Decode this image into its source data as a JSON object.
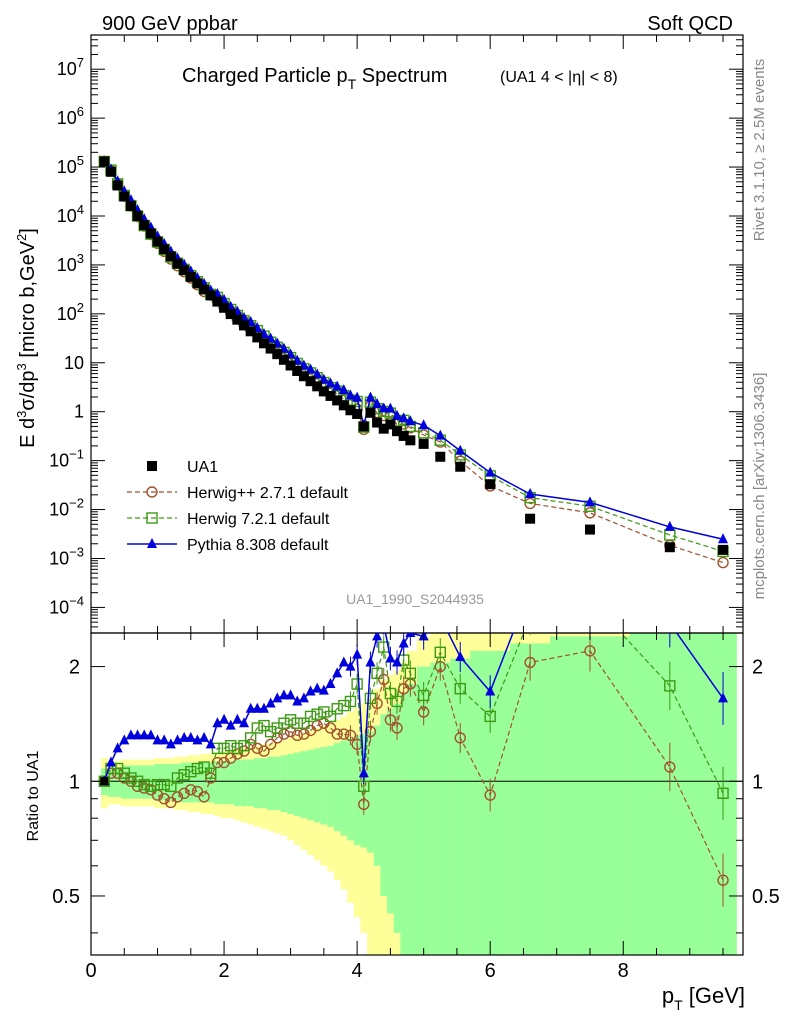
{
  "header": {
    "left": "900 GeV ppbar",
    "right": "Soft QCD"
  },
  "side_labels": {
    "rivet": "Rivet 3.1.10, ≥ 2.5M events",
    "mcplots": "mcplots.cern.ch [arXiv:1306.3436]"
  },
  "chart_data": {
    "type": "scatter",
    "title": "Charged Particle pT Spectrum",
    "title_main": "Charged Particle p",
    "title_sub": "T",
    "title_tail": " Spectrum",
    "subtitle": "(UA1   4 < |η| < 8)",
    "watermark": "UA1_1990_S2044935",
    "xlabel": "p",
    "xlabel_sub": "T",
    "xlabel_unit": " [GeV]",
    "ylabel": "E d³σ/dp³ [micro b,GeV²]",
    "ylabel_parts": {
      "a": "E d",
      "b": "3",
      "c": "σ/dp",
      "d": "3",
      "e": " [micro b,GeV",
      "f": "2",
      "g": "]"
    },
    "ratio_ylabel": "Ratio to UA1",
    "xlim": [
      0,
      9.8
    ],
    "ylim": [
      3e-05,
      50000000
    ],
    "ratio_ylim": [
      0.35,
      2.45
    ],
    "x_ticks": [
      "0",
      "2",
      "4",
      "6",
      "8"
    ],
    "y_ticks": [
      {
        "v": 10000000,
        "base": "10",
        "exp": "7"
      },
      {
        "v": 1000000,
        "base": "10",
        "exp": "6"
      },
      {
        "v": 100000,
        "base": "10",
        "exp": "5"
      },
      {
        "v": 10000,
        "base": "10",
        "exp": "4"
      },
      {
        "v": 1000,
        "base": "10",
        "exp": "3"
      },
      {
        "v": 100,
        "base": "10",
        "exp": "2"
      },
      {
        "v": 10,
        "base": "10",
        "exp": ""
      },
      {
        "v": 1,
        "base": "1",
        "exp": ""
      },
      {
        "v": 0.1,
        "base": "10",
        "exp": "−1"
      },
      {
        "v": 0.01,
        "base": "10",
        "exp": "−2"
      },
      {
        "v": 0.001,
        "base": "10",
        "exp": "−3"
      },
      {
        "v": 0.0001,
        "base": "10",
        "exp": "−4"
      }
    ],
    "ratio_ticks": [
      "2",
      "1",
      "0.5"
    ],
    "colors": {
      "data": "#000000",
      "herwigpp": "#a0522d",
      "herwig7": "#3c9a13",
      "pythia": "#0000dd",
      "band_outer": "#ffff99",
      "band_inner": "#99ff99"
    },
    "legend": [
      {
        "key": "data",
        "label": "UA1"
      },
      {
        "key": "herwigpp",
        "label": "Herwig++ 2.7.1 default"
      },
      {
        "key": "herwig7",
        "label": "Herwig 7.2.1 default"
      },
      {
        "key": "pythia",
        "label": "Pythia 8.308 default"
      }
    ],
    "x": [
      0.2,
      0.3,
      0.4,
      0.5,
      0.6,
      0.7,
      0.8,
      0.9,
      1.0,
      1.1,
      1.2,
      1.3,
      1.4,
      1.5,
      1.6,
      1.7,
      1.8,
      1.9,
      2.0,
      2.1,
      2.2,
      2.3,
      2.4,
      2.5,
      2.6,
      2.7,
      2.8,
      2.9,
      3.0,
      3.1,
      3.2,
      3.3,
      3.4,
      3.5,
      3.6,
      3.7,
      3.8,
      3.9,
      4.0,
      4.1,
      4.2,
      4.3,
      4.4,
      4.5,
      4.6,
      4.7,
      4.8,
      5.0,
      5.25,
      5.55,
      6.0,
      6.6,
      7.5,
      8.7,
      9.5
    ],
    "series": [
      {
        "name": "UA1",
        "key": "data",
        "values": [
          130000,
          80000,
          42000,
          25000,
          16000,
          10000,
          6500,
          4400,
          3000,
          2100,
          1500,
          1060,
          780,
          570,
          420,
          315,
          238,
          178,
          133,
          99,
          76,
          58,
          44,
          33,
          25,
          19.5,
          15,
          11.5,
          8.8,
          6.8,
          5.3,
          4.2,
          3.3,
          2.6,
          2.1,
          1.7,
          1.35,
          1.07,
          0.9,
          0.5,
          0.95,
          0.6,
          0.45,
          0.55,
          0.4,
          0.32,
          0.26,
          0.22,
          0.12,
          0.075,
          0.033,
          0.0065,
          0.0039,
          0.0017,
          0.0015
        ]
      },
      {
        "name": "Herwig++ 2.7.1 default",
        "key": "herwigpp",
        "ratio": [
          1.0,
          1.05,
          1.05,
          1.02,
          1.0,
          0.97,
          0.96,
          0.95,
          0.92,
          0.9,
          0.88,
          0.91,
          0.93,
          0.95,
          0.94,
          0.91,
          1.02,
          1.12,
          1.12,
          1.15,
          1.18,
          1.2,
          1.25,
          1.22,
          1.2,
          1.25,
          1.3,
          1.33,
          1.35,
          1.32,
          1.33,
          1.36,
          1.4,
          1.42,
          1.38,
          1.33,
          1.33,
          1.32,
          1.25,
          0.87,
          1.35,
          1.6,
          1.85,
          1.45,
          1.38,
          1.75,
          1.8,
          1.52,
          2.0,
          1.3,
          0.92,
          2.05,
          2.2,
          1.09,
          0.55
        ]
      },
      {
        "name": "Herwig 7.2.1 default",
        "key": "herwig7",
        "ratio": [
          1.0,
          1.08,
          1.08,
          1.05,
          1.02,
          1.0,
          0.98,
          0.97,
          0.98,
          0.98,
          0.97,
          1.02,
          1.04,
          1.06,
          1.08,
          1.09,
          1.05,
          1.22,
          1.22,
          1.24,
          1.22,
          1.24,
          1.3,
          1.38,
          1.4,
          1.35,
          1.38,
          1.42,
          1.45,
          1.42,
          1.42,
          1.48,
          1.5,
          1.52,
          1.48,
          1.55,
          1.58,
          1.62,
          1.8,
          0.97,
          1.65,
          1.92,
          2.25,
          1.7,
          1.62,
          2.08,
          1.92,
          1.68,
          2.18,
          1.75,
          1.48,
          2.7,
          3.0,
          1.78,
          0.93
        ]
      },
      {
        "name": "Pythia 8.308 default",
        "key": "pythia",
        "ratio": [
          1.0,
          1.12,
          1.22,
          1.28,
          1.32,
          1.32,
          1.32,
          1.32,
          1.28,
          1.28,
          1.25,
          1.28,
          1.3,
          1.3,
          1.28,
          1.3,
          1.25,
          1.42,
          1.45,
          1.4,
          1.45,
          1.42,
          1.55,
          1.55,
          1.55,
          1.6,
          1.65,
          1.68,
          1.68,
          1.62,
          1.65,
          1.72,
          1.75,
          1.73,
          1.8,
          1.92,
          2.05,
          2.0,
          2.15,
          1.05,
          2.05,
          2.4,
          2.6,
          2.1,
          2.05,
          2.3,
          2.45,
          2.4,
          2.7,
          2.12,
          1.72,
          3.2,
          3.6,
          2.6,
          1.65
        ]
      }
    ],
    "bands": {
      "x_edges": [
        0.15,
        0.25,
        0.35,
        0.45,
        0.55,
        0.65,
        0.75,
        0.85,
        0.95,
        1.05,
        1.15,
        1.25,
        1.35,
        1.45,
        1.55,
        1.65,
        1.75,
        1.85,
        1.95,
        2.05,
        2.15,
        2.25,
        2.35,
        2.45,
        2.55,
        2.65,
        2.75,
        2.85,
        2.95,
        3.05,
        3.15,
        3.25,
        3.35,
        3.45,
        3.55,
        3.65,
        3.75,
        3.85,
        3.95,
        4.05,
        4.15,
        4.25,
        4.35,
        4.45,
        4.55,
        4.65,
        4.75,
        4.9,
        5.1,
        5.4,
        5.7,
        6.3,
        6.9,
        8.1,
        9.3,
        9.7
      ],
      "inner_half": [
        0.08,
        0.09,
        0.09,
        0.1,
        0.1,
        0.1,
        0.1,
        0.1,
        0.11,
        0.11,
        0.11,
        0.11,
        0.12,
        0.12,
        0.12,
        0.12,
        0.12,
        0.13,
        0.13,
        0.13,
        0.14,
        0.14,
        0.14,
        0.15,
        0.15,
        0.16,
        0.16,
        0.17,
        0.18,
        0.19,
        0.2,
        0.21,
        0.22,
        0.23,
        0.24,
        0.26,
        0.28,
        0.3,
        0.32,
        0.33,
        0.35,
        0.4,
        0.5,
        0.55,
        0.6,
        0.7,
        0.8,
        1.0,
        1.05,
        1.1,
        1.2,
        1.3,
        1.4,
        1.6,
        1.7
      ],
      "outer_half": [
        0.15,
        0.13,
        0.13,
        0.14,
        0.14,
        0.14,
        0.14,
        0.14,
        0.15,
        0.15,
        0.15,
        0.16,
        0.16,
        0.17,
        0.17,
        0.18,
        0.18,
        0.19,
        0.2,
        0.2,
        0.21,
        0.22,
        0.23,
        0.24,
        0.25,
        0.26,
        0.27,
        0.28,
        0.3,
        0.32,
        0.34,
        0.36,
        0.38,
        0.4,
        0.42,
        0.45,
        0.48,
        0.52,
        0.56,
        0.6,
        0.65,
        0.75,
        0.85,
        0.9,
        0.95,
        1.05,
        1.2,
        1.4,
        1.5,
        1.6,
        1.8,
        2.1,
        2.5,
        3.0,
        3.5
      ]
    }
  }
}
